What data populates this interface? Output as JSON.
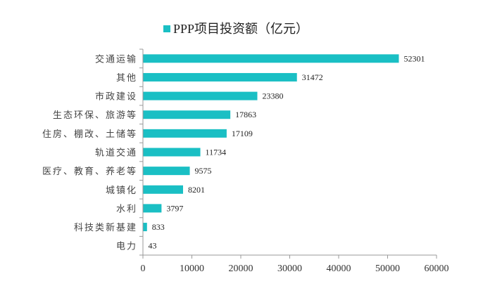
{
  "chart_data": {
    "type": "bar",
    "orientation": "horizontal",
    "categories": [
      "交通运输",
      "其他",
      "市政建设",
      "生态环保、旅游等",
      "住房、棚改、土储等",
      "轨道交通",
      "医疗、教育、养老等",
      "城镇化",
      "水利",
      "科技类新基建",
      "电力"
    ],
    "series": [
      {
        "name": "PPP项目投资额（亿元）",
        "values": [
          52301,
          31472,
          23380,
          17863,
          17109,
          11734,
          9575,
          8201,
          3797,
          833,
          43
        ],
        "color": "#1ABFC4"
      }
    ],
    "data_labels": [
      "52301",
      "31472",
      "23380",
      "17863",
      "17109",
      "11734",
      "9575",
      "8201",
      "3797",
      "833",
      "43"
    ],
    "xlim": [
      0,
      60000
    ],
    "x_ticks": [
      "0",
      "10000",
      "20000",
      "30000",
      "40000",
      "50000",
      "60000"
    ],
    "grid": false,
    "legend": "top"
  }
}
